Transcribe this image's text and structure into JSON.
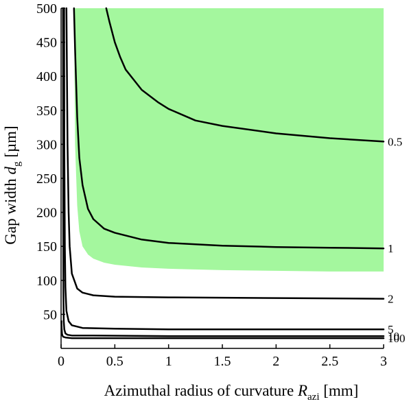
{
  "chart_data": {
    "type": "line",
    "title": "",
    "xlabel": {
      "prefix": "Azimuthal radius of curvature ",
      "symbol": "R",
      "subscript": "azi",
      "suffix": " [mm]"
    },
    "ylabel": {
      "prefix": "Gap width ",
      "symbol": "d",
      "subscript": "g",
      "suffix": " [µm]"
    },
    "xlim": [
      0,
      3
    ],
    "ylim": [
      0,
      500
    ],
    "x_ticks": [
      "0",
      "0.5",
      "1",
      "1.5",
      "2",
      "2.5",
      "3"
    ],
    "y_ticks": [
      "50",
      "100",
      "150",
      "200",
      "250",
      "300",
      "350",
      "400",
      "450",
      "500"
    ],
    "grid": false,
    "legend": "none",
    "region": {
      "color": "#a4f79e",
      "upper": 500,
      "x": [
        0.12,
        0.13,
        0.15,
        0.17,
        0.2,
        0.25,
        0.3,
        0.4,
        0.5,
        0.75,
        1.0,
        1.5,
        2.0,
        2.5,
        3.0
      ],
      "lower": [
        500,
        300,
        210,
        172,
        150,
        138,
        132,
        126,
        123,
        119,
        117,
        115,
        114,
        113,
        113
      ]
    },
    "series": [
      {
        "label": "0.5",
        "x": [
          0.42,
          0.45,
          0.5,
          0.55,
          0.6,
          0.7,
          0.75,
          0.9,
          1.0,
          1.25,
          1.5,
          2.0,
          2.5,
          3.0
        ],
        "y": [
          500,
          480,
          450,
          428,
          410,
          390,
          380,
          362,
          352,
          335,
          327,
          316,
          309,
          304
        ]
      },
      {
        "label": "1",
        "x": [
          0.12,
          0.13,
          0.15,
          0.17,
          0.2,
          0.25,
          0.3,
          0.4,
          0.5,
          0.75,
          1.0,
          1.5,
          2.0,
          2.5,
          3.0
        ],
        "y": [
          500,
          440,
          340,
          280,
          240,
          205,
          190,
          176,
          170,
          160,
          155,
          151,
          149,
          148,
          147
        ]
      },
      {
        "label": "2",
        "x": [
          0.05,
          0.055,
          0.06,
          0.07,
          0.08,
          0.1,
          0.15,
          0.2,
          0.3,
          0.5,
          1.0,
          2.0,
          3.0
        ],
        "y": [
          500,
          400,
          300,
          200,
          150,
          110,
          88,
          82,
          78,
          76,
          75,
          74,
          73
        ]
      },
      {
        "label": "5",
        "x": [
          0.028,
          0.03,
          0.035,
          0.04,
          0.05,
          0.07,
          0.1,
          0.2,
          0.5,
          1.0,
          2.0,
          3.0
        ],
        "y": [
          500,
          300,
          150,
          90,
          55,
          40,
          34,
          30,
          29,
          28,
          28,
          28
        ]
      },
      {
        "label": "10",
        "x": [
          0.018,
          0.02,
          0.022,
          0.025,
          0.03,
          0.04,
          0.06,
          0.1,
          0.3,
          1.0,
          2.0,
          3.0
        ],
        "y": [
          500,
          200,
          80,
          40,
          28,
          22,
          20,
          19,
          19,
          18,
          18,
          18
        ]
      },
      {
        "label": "100",
        "x": [
          0.003,
          0.005,
          0.008,
          0.012,
          0.02,
          0.04,
          0.1,
          0.5,
          1.0,
          2.0,
          3.0
        ],
        "y": [
          40,
          30,
          22,
          19,
          17,
          16,
          15,
          15,
          15,
          15,
          15
        ]
      }
    ]
  }
}
